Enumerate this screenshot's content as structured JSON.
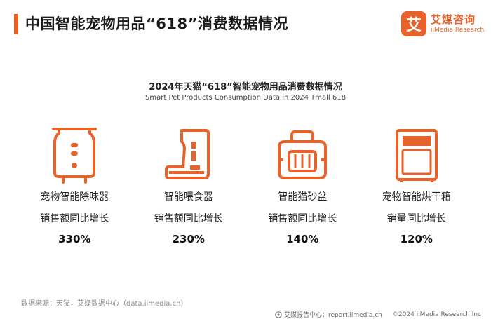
{
  "header": {
    "title": "中国智能宠物用品“618”消费数据情况"
  },
  "logo": {
    "glyph": "艾",
    "name_cn": "艾媒咨询",
    "name_en": "iiMedia Research",
    "color": "#e8622c"
  },
  "chart": {
    "title": "2024年天猫“618”智能宠物用品消费数据情况",
    "subtitle": "Smart Pet Products Consumption Data in 2024 Tmall 618"
  },
  "chart_data": {
    "type": "table",
    "columns": [
      "item",
      "metric",
      "value"
    ],
    "rows": [
      {
        "name": "宠物智能除味器",
        "metric": "销售额同比增长",
        "value": "330%",
        "icon": "air-purifier-icon"
      },
      {
        "name": "智能喂食器",
        "metric": "销售额同比增长",
        "value": "230%",
        "icon": "pet-feeder-icon"
      },
      {
        "name": "智能猫砂盆",
        "metric": "销售额同比增长",
        "value": "140%",
        "icon": "litter-box-icon"
      },
      {
        "name": "宠物智能烘干箱",
        "metric": "销量同比增长",
        "value": "120%",
        "icon": "dryer-box-icon"
      }
    ]
  },
  "source": "数据来源：天猫，艾媒数据中心（data.iimedia.cn）",
  "footer": {
    "report": "艾媒报告中心：report.iimedia.cn",
    "copyright": "©2024  iiMedia Research  Inc"
  }
}
